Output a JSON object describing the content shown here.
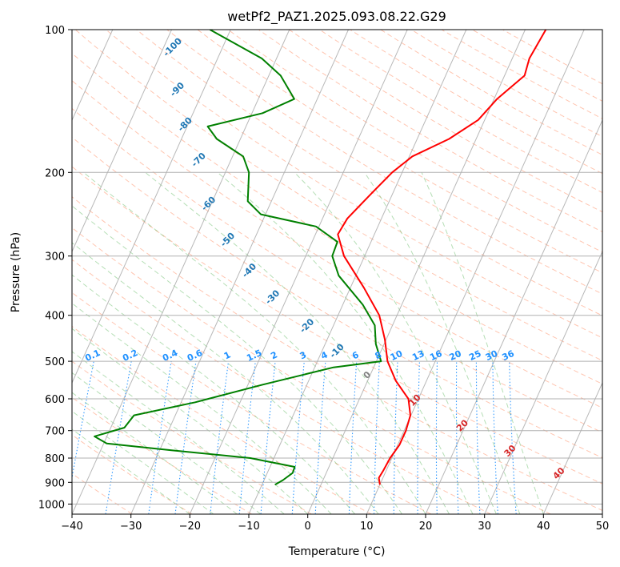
{
  "chart_data": {
    "type": "line",
    "diagram": "skew-T log-p",
    "title": "wetPf2_PAZ1.2025.093.08.22.G29",
    "xlabel": "Temperature (°C)",
    "ylabel": "Pressure (hPa)",
    "xlim": [
      -40,
      50
    ],
    "ylim": [
      1050,
      100
    ],
    "y_scale": "log",
    "grid": true,
    "x_ticks": [
      -40,
      -30,
      -20,
      -10,
      0,
      10,
      20,
      30,
      40,
      50
    ],
    "y_ticks": [
      100,
      200,
      300,
      400,
      500,
      600,
      700,
      800,
      900,
      1000
    ],
    "series": [
      {
        "role": "temperature",
        "color": "#ff0000",
        "points": [
          {
            "p": 910,
            "t": 10.0
          },
          {
            "p": 880,
            "t": 9.3
          },
          {
            "p": 850,
            "t": 9.5
          },
          {
            "p": 800,
            "t": 9.7
          },
          {
            "p": 750,
            "t": 10.3
          },
          {
            "p": 700,
            "t": 10.3
          },
          {
            "p": 650,
            "t": 9.9
          },
          {
            "p": 600,
            "t": 8.3
          },
          {
            "p": 550,
            "t": 4.8
          },
          {
            "p": 500,
            "t": 1.9
          },
          {
            "p": 450,
            "t": -0.2
          },
          {
            "p": 400,
            "t": -3.0
          },
          {
            "p": 350,
            "t": -7.7
          },
          {
            "p": 300,
            "t": -13.5
          },
          {
            "p": 270,
            "t": -16.2
          },
          {
            "p": 250,
            "t": -15.8
          },
          {
            "p": 220,
            "t": -13.5
          },
          {
            "p": 200,
            "t": -11.7
          },
          {
            "p": 185,
            "t": -9.5
          },
          {
            "p": 170,
            "t": -4.6
          },
          {
            "p": 155,
            "t": -1.1
          },
          {
            "p": 140,
            "t": 0.5
          },
          {
            "p": 125,
            "t": 3.4
          },
          {
            "p": 115,
            "t": 2.9
          },
          {
            "p": 100,
            "t": 3.5
          }
        ]
      },
      {
        "role": "dewpoint",
        "color": "#008000",
        "points": [
          {
            "p": 910,
            "t": -7.8
          },
          {
            "p": 890,
            "t": -6.8
          },
          {
            "p": 860,
            "t": -5.7
          },
          {
            "p": 835,
            "t": -5.8
          },
          {
            "p": 800,
            "t": -14.0
          },
          {
            "p": 770,
            "t": -28.0
          },
          {
            "p": 745,
            "t": -39.5
          },
          {
            "p": 720,
            "t": -42.1
          },
          {
            "p": 690,
            "t": -37.7
          },
          {
            "p": 650,
            "t": -37.0
          },
          {
            "p": 610,
            "t": -27.6
          },
          {
            "p": 560,
            "t": -17.5
          },
          {
            "p": 515,
            "t": -6.8
          },
          {
            "p": 500,
            "t": 0.8
          },
          {
            "p": 460,
            "t": -1.4
          },
          {
            "p": 420,
            "t": -3.0
          },
          {
            "p": 380,
            "t": -6.6
          },
          {
            "p": 330,
            "t": -12.9
          },
          {
            "p": 300,
            "t": -15.5
          },
          {
            "p": 280,
            "t": -15.7
          },
          {
            "p": 260,
            "t": -20.5
          },
          {
            "p": 245,
            "t": -30.8
          },
          {
            "p": 230,
            "t": -34.0
          },
          {
            "p": 200,
            "t": -36.0
          },
          {
            "p": 185,
            "t": -38.2
          },
          {
            "p": 170,
            "t": -44.0
          },
          {
            "p": 160,
            "t": -46.5
          },
          {
            "p": 150,
            "t": -38.2
          },
          {
            "p": 140,
            "t": -33.9
          },
          {
            "p": 125,
            "t": -38.0
          },
          {
            "p": 115,
            "t": -42.5
          },
          {
            "p": 100,
            "t": -53.5
          }
        ]
      }
    ],
    "dry_adiabat_labels": [
      "-100",
      "-90",
      "-80",
      "-70",
      "-60",
      "-50",
      "-40",
      "-30",
      "-20",
      "-10"
    ],
    "mixing_ratio_labels": [
      "0.1",
      "0.2",
      "0.4",
      "0.6",
      "1",
      "1.5",
      "2",
      "3",
      "4",
      "6",
      "8",
      "10",
      "13",
      "16",
      "20",
      "25",
      "30",
      "36"
    ],
    "moist_adiabat_labels": [
      "0",
      "10",
      "20",
      "30",
      "40"
    ],
    "colors": {
      "temperature": "#ff0000",
      "dewpoint": "#008000",
      "isotherm": "#a0a0a0",
      "dry_adiabat": "#ff7f50",
      "moist_adiabat": "#2ca02c",
      "mixing_ratio": "#1e90ff",
      "dry_label": "#1f77b4",
      "moist_label": "#d62728"
    }
  }
}
